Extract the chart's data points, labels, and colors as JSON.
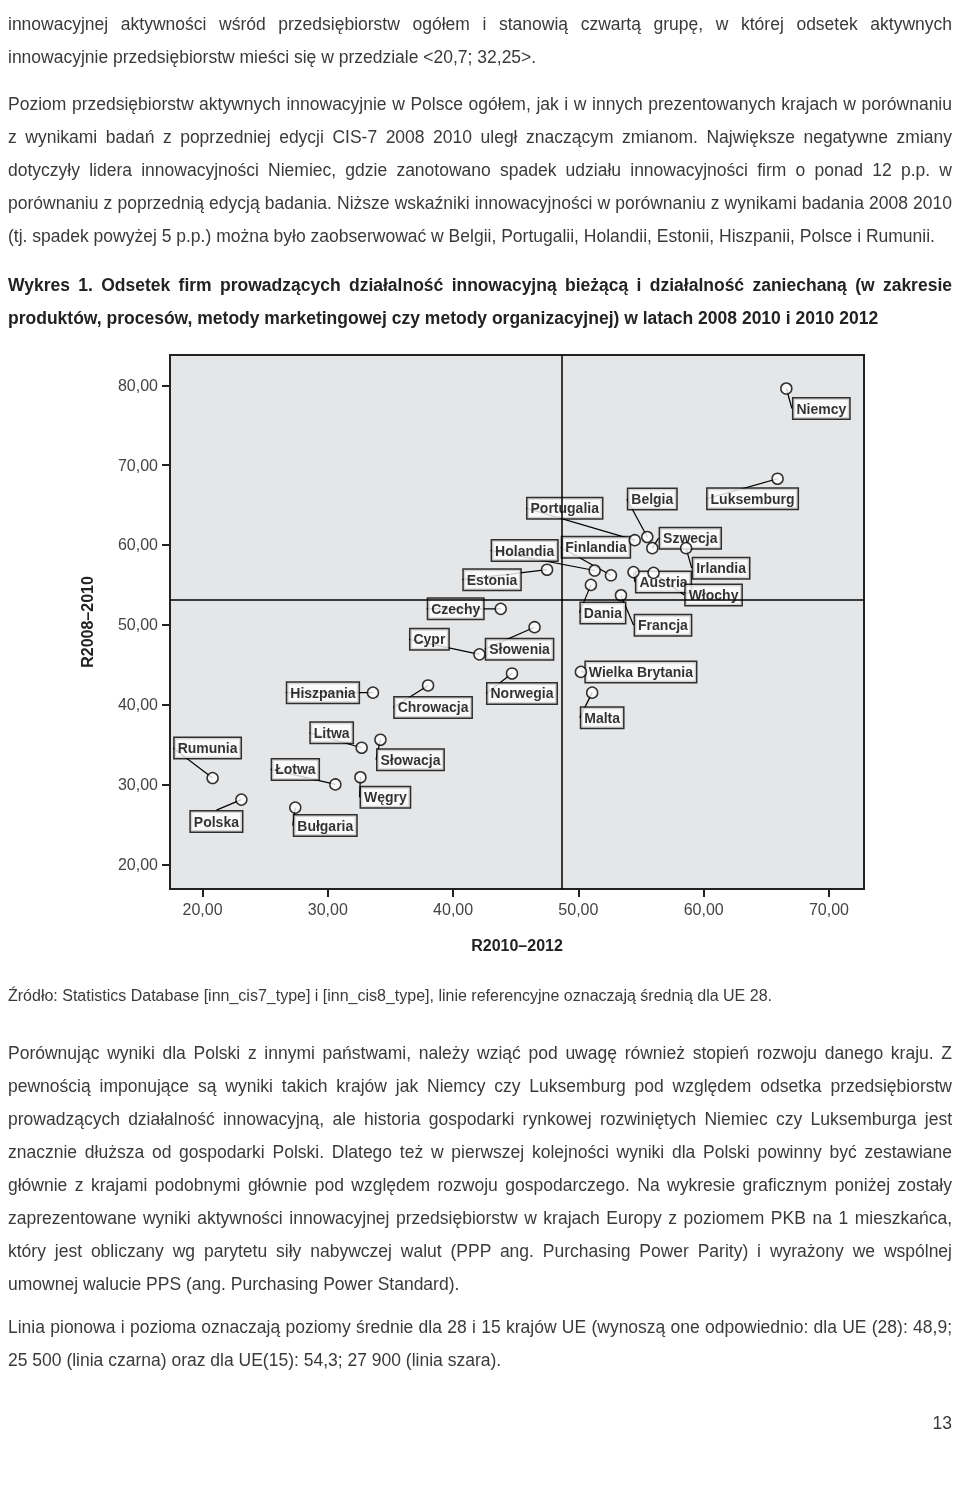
{
  "chart_data": {
    "type": "scatter",
    "title": "Wykres 1. Odsetek firm prowadzących działalność innowacyjną bieżącą i działalność zaniechaną (w zakresie produktów, procesów, metody marketingowej czy metody organizacyjnej) w latach 2008 2010 i 2010 2012",
    "xlabel": "R2010–2012",
    "ylabel": "R2008–2010",
    "xlim": [
      17.4,
      72.8
    ],
    "ylim": [
      16.9,
      83.8
    ],
    "xticks": [
      {
        "value": 20,
        "label": "20,00"
      },
      {
        "value": 30,
        "label": "30,00"
      },
      {
        "value": 40,
        "label": "40,00"
      },
      {
        "value": 50,
        "label": "50,00"
      },
      {
        "value": 60,
        "label": "60,00"
      },
      {
        "value": 70,
        "label": "70,00"
      }
    ],
    "yticks": [
      {
        "value": 20,
        "label": "20,00"
      },
      {
        "value": 30,
        "label": "30,00"
      },
      {
        "value": 40,
        "label": "40,00"
      },
      {
        "value": 50,
        "label": "50,00"
      },
      {
        "value": 60,
        "label": "60,00"
      },
      {
        "value": 70,
        "label": "70,00"
      },
      {
        "value": 80,
        "label": "80,00"
      }
    ],
    "grid": false,
    "marker": "circle",
    "ref_lines": [
      {
        "axis": "x",
        "value": 48.7,
        "color": "#000000"
      },
      {
        "axis": "y",
        "value": 53.1,
        "color": "#000000"
      }
    ],
    "series": [
      {
        "color": "#000000",
        "x": [
          66.6,
          65.9,
          55.5,
          54.5,
          55.9,
          58.6,
          51.3,
          52.6,
          54.4,
          56.0,
          47.5,
          51.0,
          53.4,
          43.8,
          46.5,
          42.1,
          44.7,
          50.2,
          51.1,
          33.6,
          38.0,
          32.7,
          34.2,
          20.8,
          30.6,
          32.6,
          23.1,
          27.4
        ],
        "values": [
          79.6,
          68.3,
          61.0,
          60.6,
          59.6,
          59.6,
          56.8,
          56.2,
          56.6,
          56.5,
          56.9,
          55.0,
          53.7,
          52.0,
          49.7,
          46.3,
          43.9,
          44.1,
          41.5,
          41.5,
          42.4,
          34.6,
          35.6,
          30.8,
          30.0,
          30.9,
          28.1,
          27.1
        ]
      }
    ],
    "annotations": [
      "innowacyjnej aktywności wśród przedsiębiorstw ogółem i stanowią czwartą grupę, w której odsetek aktywnych innowacyjnie przedsiębiorstw mieści się w przedziale <20,7; 32,25>.",
      "Poziom przedsiębiorstw aktywnych innowacyjnie w Polsce ogółem, jak i w innych prezentowanych krajach w porównaniu z wynikami badań z poprzedniej edycji CIS-7 2008 2010 uległ znaczącym zmianom. Największe negatywne zmiany dotyczyły lidera innowacyjności Niemiec, gdzie zanotowano spadek udziału innowacyjności firm o ponad 12 p.p. w porównaniu z poprzednią edycją badania. Niższe wskaźniki innowacyjności w porównaniu z wynikami badania 2008 2010 (tj. spadek powyżej 5 p.p.) można było zaobserwować w Belgii, Portugalii, Holandii, Estonii, Hiszpanii, Polsce i Rumunii.",
      "Źródło: Statistics Database [inn_cis7_type] i [inn_cis8_type], linie referencyjne oznaczają średnią dla UE 28.",
      "Porównując wyniki dla Polski z innymi państwami, należy wziąć pod uwagę również stopień rozwoju danego kraju. Z pewnością imponujące są wyniki takich krajów jak Niemcy czy Luksemburg pod względem odsetka przedsiębiorstw prowadzących działalność innowacyjną, ale historia gospodarki rynkowej rozwiniętych Niemiec czy Luksemburga jest znacznie dłuższa od gospodarki Polski. Dlatego też w pierwszej kolejności wyniki dla Polski powinny być zestawiane głównie z krajami podobnymi głównie pod względem rozwoju gospodarczego. Na wykresie graficznym poniżej zostały zaprezentowane wyniki aktywności innowacyjnej przedsiębiorstw w krajach Europy z poziomem PKB na 1 mieszkańca, który jest obliczany wg parytetu siły nabywczej walut (PPP ang. Purchasing Power Parity) i wyrażony we wspólnej umownej walucie PPS (ang. Purchasing Power Standard).",
      "Linia pionowa i pozioma oznaczają poziomy średnie dla 28 i 15 krajów UE (wynoszą one odpowiednio: dla UE (28): 48,9; 25 500 (linia czarna) oraz dla UE(15): 54,3; 27 900 (linia szara).",
      "13",
      {
        "text": "Niemcy",
        "x": 66.6,
        "y": 79.6
      },
      {
        "text": "Luksemburg",
        "x": 65.9,
        "y": 68.3
      },
      {
        "text": "Belgia",
        "x": 55.5,
        "y": 61.0
      },
      {
        "text": "Portugalia",
        "x": 54.5,
        "y": 60.6
      },
      {
        "text": "Szwecja",
        "x": 55.9,
        "y": 59.6
      },
      {
        "text": "Irlandia",
        "x": 58.6,
        "y": 59.6
      },
      {
        "text": "Holandia",
        "x": 51.3,
        "y": 56.8
      },
      {
        "text": "Finlandia",
        "x": 52.6,
        "y": 56.2
      },
      {
        "text": "Austria",
        "x": 54.4,
        "y": 56.6
      },
      {
        "text": "Włochy",
        "x": 56.0,
        "y": 56.5
      },
      {
        "text": "Estonia",
        "x": 47.5,
        "y": 56.9
      },
      {
        "text": "Dania",
        "x": 51.0,
        "y": 55.0
      },
      {
        "text": "Francja",
        "x": 53.4,
        "y": 53.7
      },
      {
        "text": "Czechy",
        "x": 43.8,
        "y": 52.0
      },
      {
        "text": "Słowenia",
        "x": 46.5,
        "y": 49.7
      },
      {
        "text": "Cypr",
        "x": 42.1,
        "y": 46.3
      },
      {
        "text": "Norwegia",
        "x": 44.7,
        "y": 43.9
      },
      {
        "text": "Wielka Brytania",
        "x": 50.2,
        "y": 44.1
      },
      {
        "text": "Malta",
        "x": 51.1,
        "y": 41.5
      },
      {
        "text": "Hiszpania",
        "x": 33.6,
        "y": 41.5
      },
      {
        "text": "Chrowacja",
        "x": 38.0,
        "y": 42.4
      },
      {
        "text": "Litwa",
        "x": 32.7,
        "y": 34.6
      },
      {
        "text": "Słowacja",
        "x": 34.2,
        "y": 35.6
      },
      {
        "text": "Rumunia",
        "x": 20.8,
        "y": 30.8
      },
      {
        "text": "Łotwa",
        "x": 30.6,
        "y": 30.0
      },
      {
        "text": "Węgry",
        "x": 32.6,
        "y": 30.9
      },
      {
        "text": "Polska",
        "x": 23.1,
        "y": 28.1
      },
      {
        "text": "Bułgaria",
        "x": 27.4,
        "y": 27.1
      }
    ]
  }
}
